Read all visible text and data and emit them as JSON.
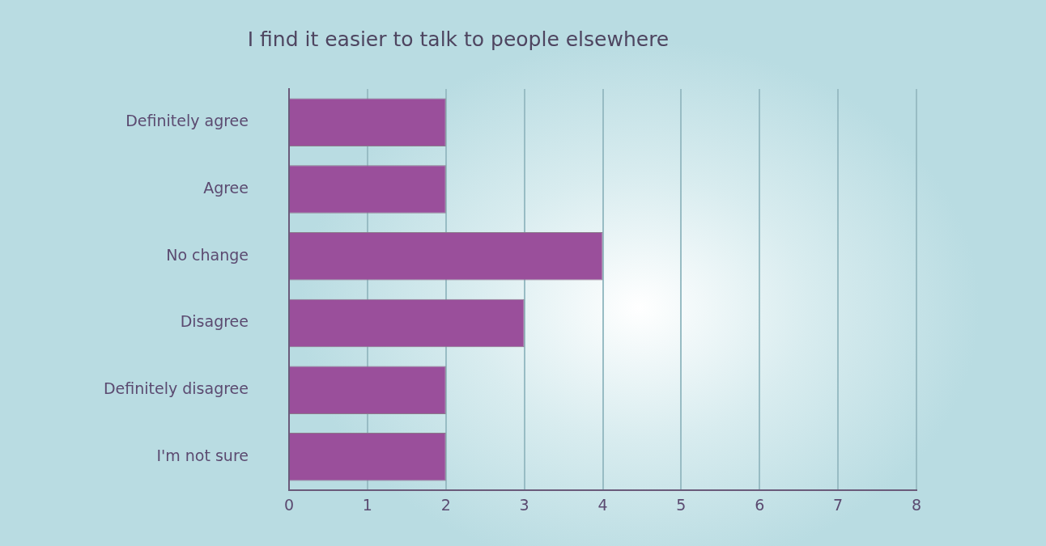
{
  "chart_data": {
    "type": "bar",
    "orientation": "horizontal",
    "title": "I find it easier to talk to people elsewhere",
    "categories": [
      "Definitely agree",
      "Agree",
      "No change",
      "Disagree",
      "Definitely disagree",
      "I'm not sure"
    ],
    "values": [
      2,
      2,
      4,
      3,
      2,
      2
    ],
    "color": "#9a4f9b",
    "xlim": [
      0,
      8
    ],
    "xticks": [
      0,
      1,
      2,
      3,
      4,
      5,
      6,
      7,
      8
    ],
    "grid": "x"
  }
}
